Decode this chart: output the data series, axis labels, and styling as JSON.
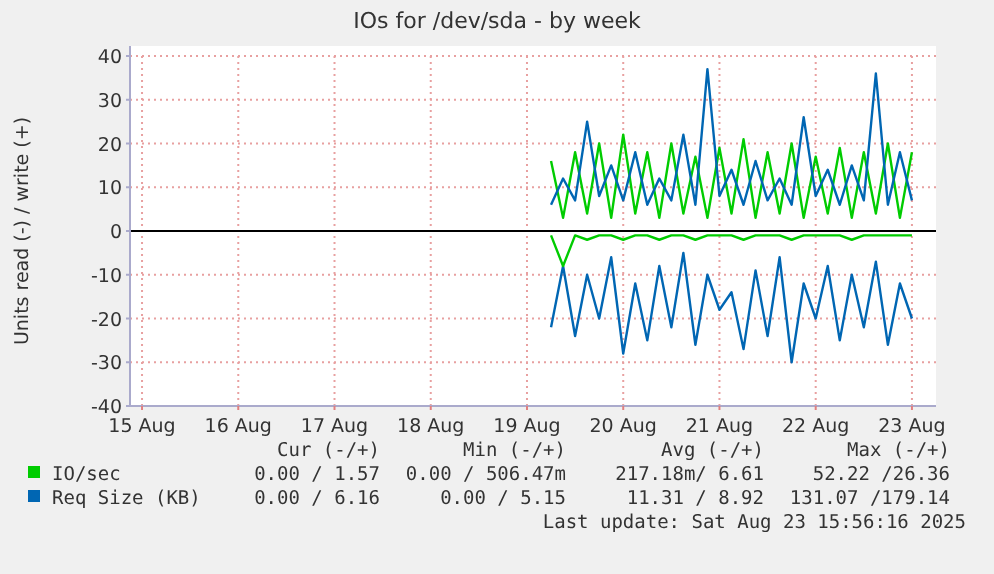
{
  "chart_data": {
    "type": "line",
    "title": "IOs for /dev/sda - by week",
    "ylabel": "Units read (-) / write (+)",
    "x": [
      "2025-08-19T06:00",
      "2025-08-19T09:00",
      "2025-08-19T12:00",
      "2025-08-19T15:00",
      "2025-08-19T18:00",
      "2025-08-19T21:00",
      "2025-08-20T00:00",
      "2025-08-20T03:00",
      "2025-08-20T06:00",
      "2025-08-20T09:00",
      "2025-08-20T12:00",
      "2025-08-20T15:00",
      "2025-08-20T18:00",
      "2025-08-20T21:00",
      "2025-08-21T00:00",
      "2025-08-21T03:00",
      "2025-08-21T06:00",
      "2025-08-21T09:00",
      "2025-08-21T12:00",
      "2025-08-21T15:00",
      "2025-08-21T18:00",
      "2025-08-21T21:00",
      "2025-08-22T00:00",
      "2025-08-22T03:00",
      "2025-08-22T06:00",
      "2025-08-22T09:00",
      "2025-08-22T12:00",
      "2025-08-22T15:00",
      "2025-08-22T18:00",
      "2025-08-22T21:00",
      "2025-08-23T00:00"
    ],
    "series": [
      {
        "color": "#0066b3",
        "values": [
          -22,
          -8,
          -24,
          -10,
          -20,
          -6,
          -28,
          -12,
          -25,
          -8,
          -22,
          -5,
          -26,
          -10,
          -18,
          -14,
          -27,
          -9,
          -24,
          -6,
          -30,
          -12,
          -20,
          -8,
          -25,
          -10,
          -22,
          -7,
          -26,
          -12,
          -20
        ]
      },
      {
        "color": "#00cc00",
        "values": [
          -1,
          -8,
          -1,
          -2,
          -1,
          -1,
          -2,
          -1,
          -1,
          -2,
          -1,
          -1,
          -2,
          -1,
          -1,
          -1,
          -2,
          -1,
          -1,
          -1,
          -2,
          -1,
          -1,
          -1,
          -1,
          -2,
          -1,
          -1,
          -1,
          -1,
          -1
        ]
      },
      {
        "name": "IO/sec",
        "color": "#00cc00",
        "values": [
          16,
          3,
          18,
          4,
          20,
          3,
          22,
          4,
          18,
          3,
          20,
          4,
          17,
          3,
          19,
          4,
          21,
          3,
          18,
          4,
          20,
          3,
          17,
          4,
          19,
          3,
          18,
          4,
          20,
          3,
          18
        ]
      },
      {
        "name": "Req Size (KB)",
        "color": "#0066b3",
        "values": [
          6,
          12,
          7,
          25,
          8,
          15,
          7,
          18,
          6,
          12,
          7,
          22,
          6,
          37,
          8,
          14,
          6,
          16,
          7,
          12,
          6,
          26,
          8,
          14,
          6,
          15,
          7,
          36,
          6,
          18,
          7
        ]
      }
    ],
    "xlim": [
      "2025-08-14T21:00",
      "2025-08-23T06:00"
    ],
    "xticks": [
      {
        "value": "2025-08-15",
        "label": "15 Aug"
      },
      {
        "value": "2025-08-16",
        "label": "16 Aug"
      },
      {
        "value": "2025-08-17",
        "label": "17 Aug"
      },
      {
        "value": "2025-08-18",
        "label": "18 Aug"
      },
      {
        "value": "2025-08-19",
        "label": "19 Aug"
      },
      {
        "value": "2025-08-20",
        "label": "20 Aug"
      },
      {
        "value": "2025-08-21",
        "label": "21 Aug"
      },
      {
        "value": "2025-08-22",
        "label": "22 Aug"
      },
      {
        "value": "2025-08-23",
        "label": "23 Aug"
      }
    ],
    "ylim": [
      -40,
      40
    ],
    "yticks": [
      -40,
      -30,
      -20,
      -10,
      0,
      10,
      20,
      30,
      40
    ],
    "grid": true,
    "legend": "bottom",
    "ref_lines": [
      {
        "axis": "y",
        "value": 0,
        "color": "#000000"
      }
    ],
    "annotations": [
      "Cur (-/+)",
      "Min (-/+)",
      "Avg (-/+)",
      "Max (-/+)",
      "0.00 / 1.57",
      "0.00 / 506.47m",
      "217.18m/ 6.61",
      "52.22 /26.36",
      "0.00 / 6.16",
      "0.00 / 5.15",
      "11.31 / 8.92",
      "131.07 /179.14",
      "Last update: Sat Aug 23 15:56:16 2025"
    ]
  }
}
